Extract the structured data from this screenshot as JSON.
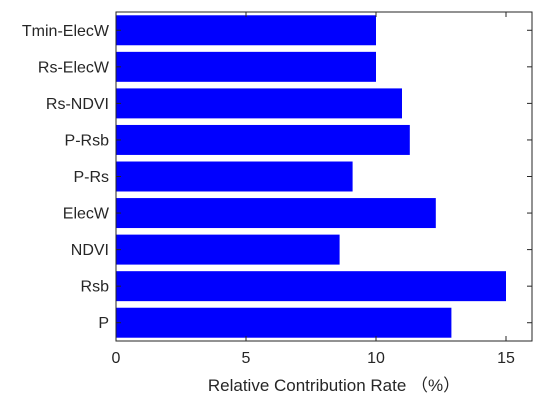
{
  "chart_data": {
    "type": "bar",
    "orientation": "horizontal",
    "categories": [
      "P",
      "Rsb",
      "NDVI",
      "ElecW",
      "P-Rs",
      "P-Rsb",
      "Rs-NDVI",
      "Rs-ElecW",
      "Tmin-ElecW"
    ],
    "values": [
      12.9,
      15.0,
      8.6,
      12.3,
      9.1,
      11.3,
      11.0,
      10.0,
      10.0
    ],
    "xlabel": "Relative Contribution Rate （%）",
    "ylabel": "",
    "xlim": [
      0,
      16
    ],
    "xticks": [
      0,
      5,
      10,
      15
    ],
    "grid": false,
    "bar_color": "#0000ff",
    "axis_color": "#262626"
  }
}
